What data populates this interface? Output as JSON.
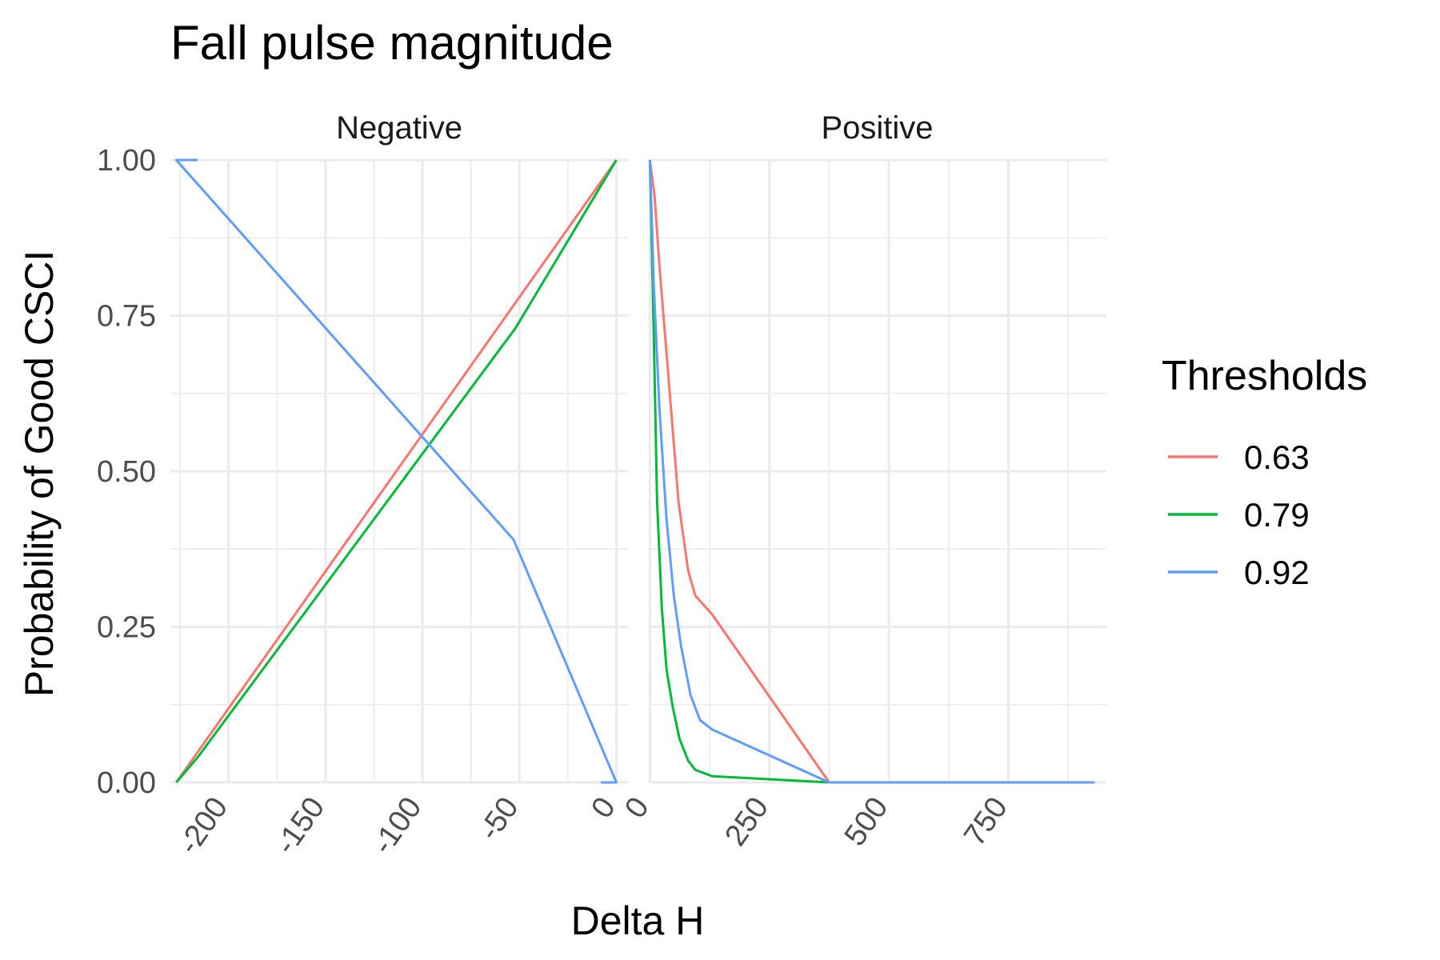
{
  "chart_data": {
    "type": "line",
    "title": "Fall pulse magnitude",
    "xlabel": "Delta H",
    "ylabel": "Probability of Good CSCI",
    "ylim": [
      0,
      1
    ],
    "y_ticks": [
      {
        "value": 0.0,
        "label": "0.00"
      },
      {
        "value": 0.25,
        "label": "0.25"
      },
      {
        "value": 0.5,
        "label": "0.50"
      },
      {
        "value": 0.75,
        "label": "0.75"
      },
      {
        "value": 1.0,
        "label": "1.00"
      }
    ],
    "grid": true,
    "legend": {
      "title": "Thresholds",
      "position": "right",
      "entries": [
        {
          "label": "0.63",
          "color": "#F8766D"
        },
        {
          "label": "0.79",
          "color": "#00BA38"
        },
        {
          "label": "0.92",
          "color": "#619CFF"
        }
      ]
    },
    "facets": [
      {
        "label": "Negative",
        "xlim": [
          -230,
          6
        ],
        "x_ticks": [
          {
            "value": -200,
            "label": "-200"
          },
          {
            "value": -150,
            "label": "-150"
          },
          {
            "value": -100,
            "label": "-100"
          },
          {
            "value": -50,
            "label": "-50"
          },
          {
            "value": 0,
            "label": "0"
          }
        ],
        "series": [
          {
            "name": "0.63",
            "color": "#F8766D",
            "points": [
              [
                -227,
                0.0
              ],
              [
                0,
                1.0
              ]
            ]
          },
          {
            "name": "0.79",
            "color": "#00BA38",
            "points": [
              [
                -227,
                0.0
              ],
              [
                -216,
                0.04
              ],
              [
                -52,
                0.73
              ],
              [
                0,
                1.0
              ]
            ]
          },
          {
            "name": "0.92",
            "color": "#619CFF",
            "points": [
              [
                -216,
                1.0
              ],
              [
                -227,
                1.0
              ],
              [
                -53,
                0.39
              ],
              [
                0,
                0.0
              ],
              [
                -8,
                0.0
              ]
            ]
          }
        ]
      },
      {
        "label": "Positive",
        "xlim": [
          -4,
          955
        ],
        "x_ticks": [
          {
            "value": 0,
            "label": "0"
          },
          {
            "value": 250,
            "label": "250"
          },
          {
            "value": 500,
            "label": "500"
          },
          {
            "value": 750,
            "label": "750"
          }
        ],
        "series": [
          {
            "name": "0.63",
            "color": "#F8766D",
            "points": [
              [
                0,
                1.0
              ],
              [
                10,
                0.94
              ],
              [
                20,
                0.83
              ],
              [
                40,
                0.64
              ],
              [
                60,
                0.45
              ],
              [
                80,
                0.34
              ],
              [
                95,
                0.3
              ],
              [
                130,
                0.27
              ],
              [
                375,
                0.0
              ],
              [
                930,
                0.0
              ]
            ]
          },
          {
            "name": "0.79",
            "color": "#00BA38",
            "points": [
              [
                0,
                1.0
              ],
              [
                8,
                0.72
              ],
              [
                15,
                0.45
              ],
              [
                25,
                0.28
              ],
              [
                35,
                0.18
              ],
              [
                48,
                0.12
              ],
              [
                62,
                0.07
              ],
              [
                80,
                0.035
              ],
              [
                95,
                0.02
              ],
              [
                130,
                0.01
              ],
              [
                375,
                0.0
              ],
              [
                930,
                0.0
              ]
            ]
          },
          {
            "name": "0.92",
            "color": "#619CFF",
            "points": [
              [
                0,
                1.0
              ],
              [
                8,
                0.8
              ],
              [
                20,
                0.6
              ],
              [
                35,
                0.42
              ],
              [
                50,
                0.3
              ],
              [
                65,
                0.22
              ],
              [
                85,
                0.14
              ],
              [
                105,
                0.1
              ],
              [
                130,
                0.085
              ],
              [
                375,
                0.0
              ],
              [
                930,
                0.0
              ]
            ]
          }
        ]
      }
    ]
  }
}
